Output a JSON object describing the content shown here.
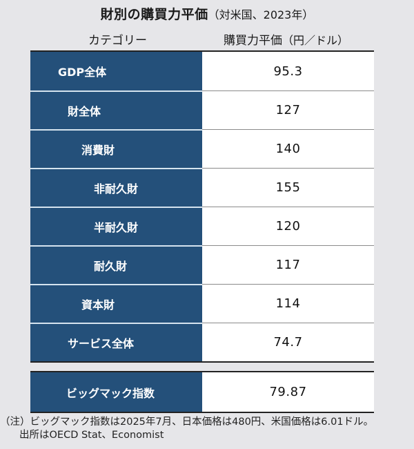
{
  "title": {
    "main": "財別の購買力平価",
    "sub": "（対米国、2023年）"
  },
  "columns": {
    "category": "カテゴリー",
    "value": "購買力平価",
    "value_unit": "（円／ドル）"
  },
  "rows": [
    {
      "label": "GDP全体",
      "value": "95.3",
      "indent": 40
    },
    {
      "label": "財全体",
      "value": "127",
      "indent": 54
    },
    {
      "label": "消費財",
      "value": "140",
      "indent": 74
    },
    {
      "label": "非耐久財",
      "value": "155",
      "indent": 92
    },
    {
      "label": "半耐久財",
      "value": "120",
      "indent": 92
    },
    {
      "label": "耐久財",
      "value": "117",
      "indent": 92
    },
    {
      "label": "資本財",
      "value": "114",
      "indent": 74
    },
    {
      "label": "サービス全体",
      "value": "74.7",
      "indent": 54
    }
  ],
  "bigmac": {
    "label": "ビッグマック指数",
    "value": "79.87",
    "indent": 52
  },
  "note": {
    "line1": "（注）ビッグマック指数は2025年7月、日本価格は480円、米国価格は6.01ドル。",
    "line2": "出所はOECD Stat、Economist"
  },
  "colors": {
    "label_bg": "#24507a",
    "value_bg": "#ffffff",
    "page_bg": "#e6e6e9"
  },
  "chart_data": {
    "type": "table",
    "title": "財別の購買力平価（対米国、2023年）",
    "columns": [
      "カテゴリー",
      "購買力平価（円／ドル）"
    ],
    "categories": [
      "GDP全体",
      "財全体",
      "消費財",
      "非耐久財",
      "半耐久財",
      "耐久財",
      "資本財",
      "サービス全体",
      "ビッグマック指数"
    ],
    "values": [
      95.3,
      127,
      140,
      155,
      120,
      117,
      114,
      74.7,
      79.87
    ],
    "hierarchy": {
      "GDP全体": [
        "財全体",
        "サービス全体"
      ],
      "財全体": [
        "消費財",
        "資本財"
      ],
      "消費財": [
        "非耐久財",
        "半耐久財",
        "耐久財"
      ]
    },
    "notes": [
      "（注）ビッグマック指数は2025年7月、日本価格は480円、米国価格は6.01ドル。",
      "出所はOECD Stat、Economist"
    ]
  }
}
